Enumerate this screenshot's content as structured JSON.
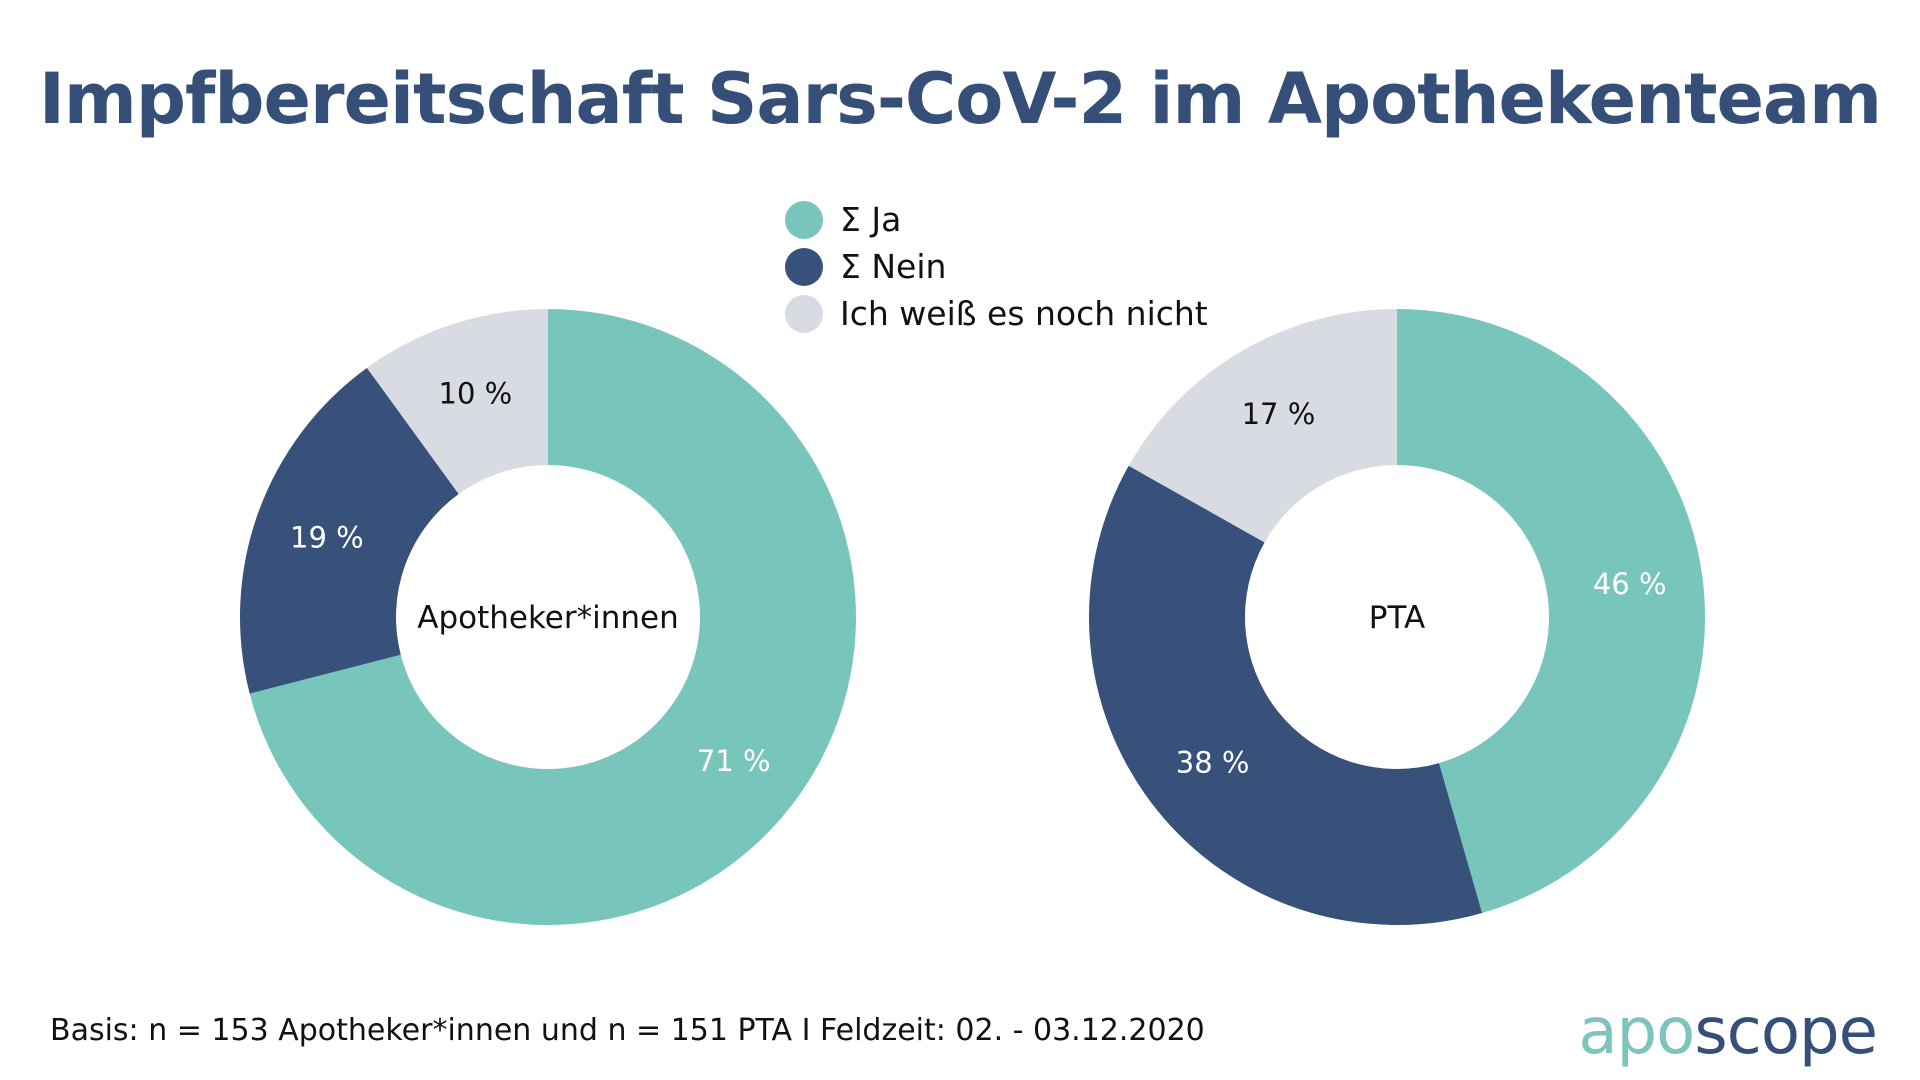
{
  "title": "Impfbereitschaft Sars-CoV-2 im Apothekenteam",
  "legend": [
    {
      "label": "Σ Ja",
      "color": "#78c5bc"
    },
    {
      "label": "Σ Nein",
      "color": "#37517a"
    },
    {
      "label": "Ich weiß es noch nicht",
      "color": "#d9dbe3"
    }
  ],
  "chart_data": [
    {
      "type": "pie",
      "center_label": "Apotheker*innen",
      "slices": [
        {
          "name": "Σ Ja",
          "value": 71,
          "label": "71 %",
          "color": "#78c5bc",
          "label_color": "#ffffff"
        },
        {
          "name": "Σ Nein",
          "value": 19,
          "label": "19 %",
          "color": "#37517a",
          "label_color": "#ffffff"
        },
        {
          "name": "Ich weiß es noch nicht",
          "value": 10,
          "label": "10 %",
          "color": "#d9dbe3",
          "label_color": "#111111"
        }
      ]
    },
    {
      "type": "pie",
      "center_label": "PTA",
      "slices": [
        {
          "name": "Σ Ja",
          "value": 46,
          "label": "46 %",
          "color": "#78c5bc",
          "label_color": "#ffffff"
        },
        {
          "name": "Σ Nein",
          "value": 38,
          "label": "38 %",
          "color": "#37517a",
          "label_color": "#ffffff"
        },
        {
          "name": "Ich weiß es noch nicht",
          "value": 17,
          "label": "17 %",
          "color": "#d9dbe3",
          "label_color": "#111111"
        }
      ]
    }
  ],
  "footer": "Basis: n = 153 Apotheker*innen und n = 151 PTA I Feldzeit: 02. - 03.12.2020",
  "logo": {
    "part1": "apo",
    "part2": "scope"
  }
}
